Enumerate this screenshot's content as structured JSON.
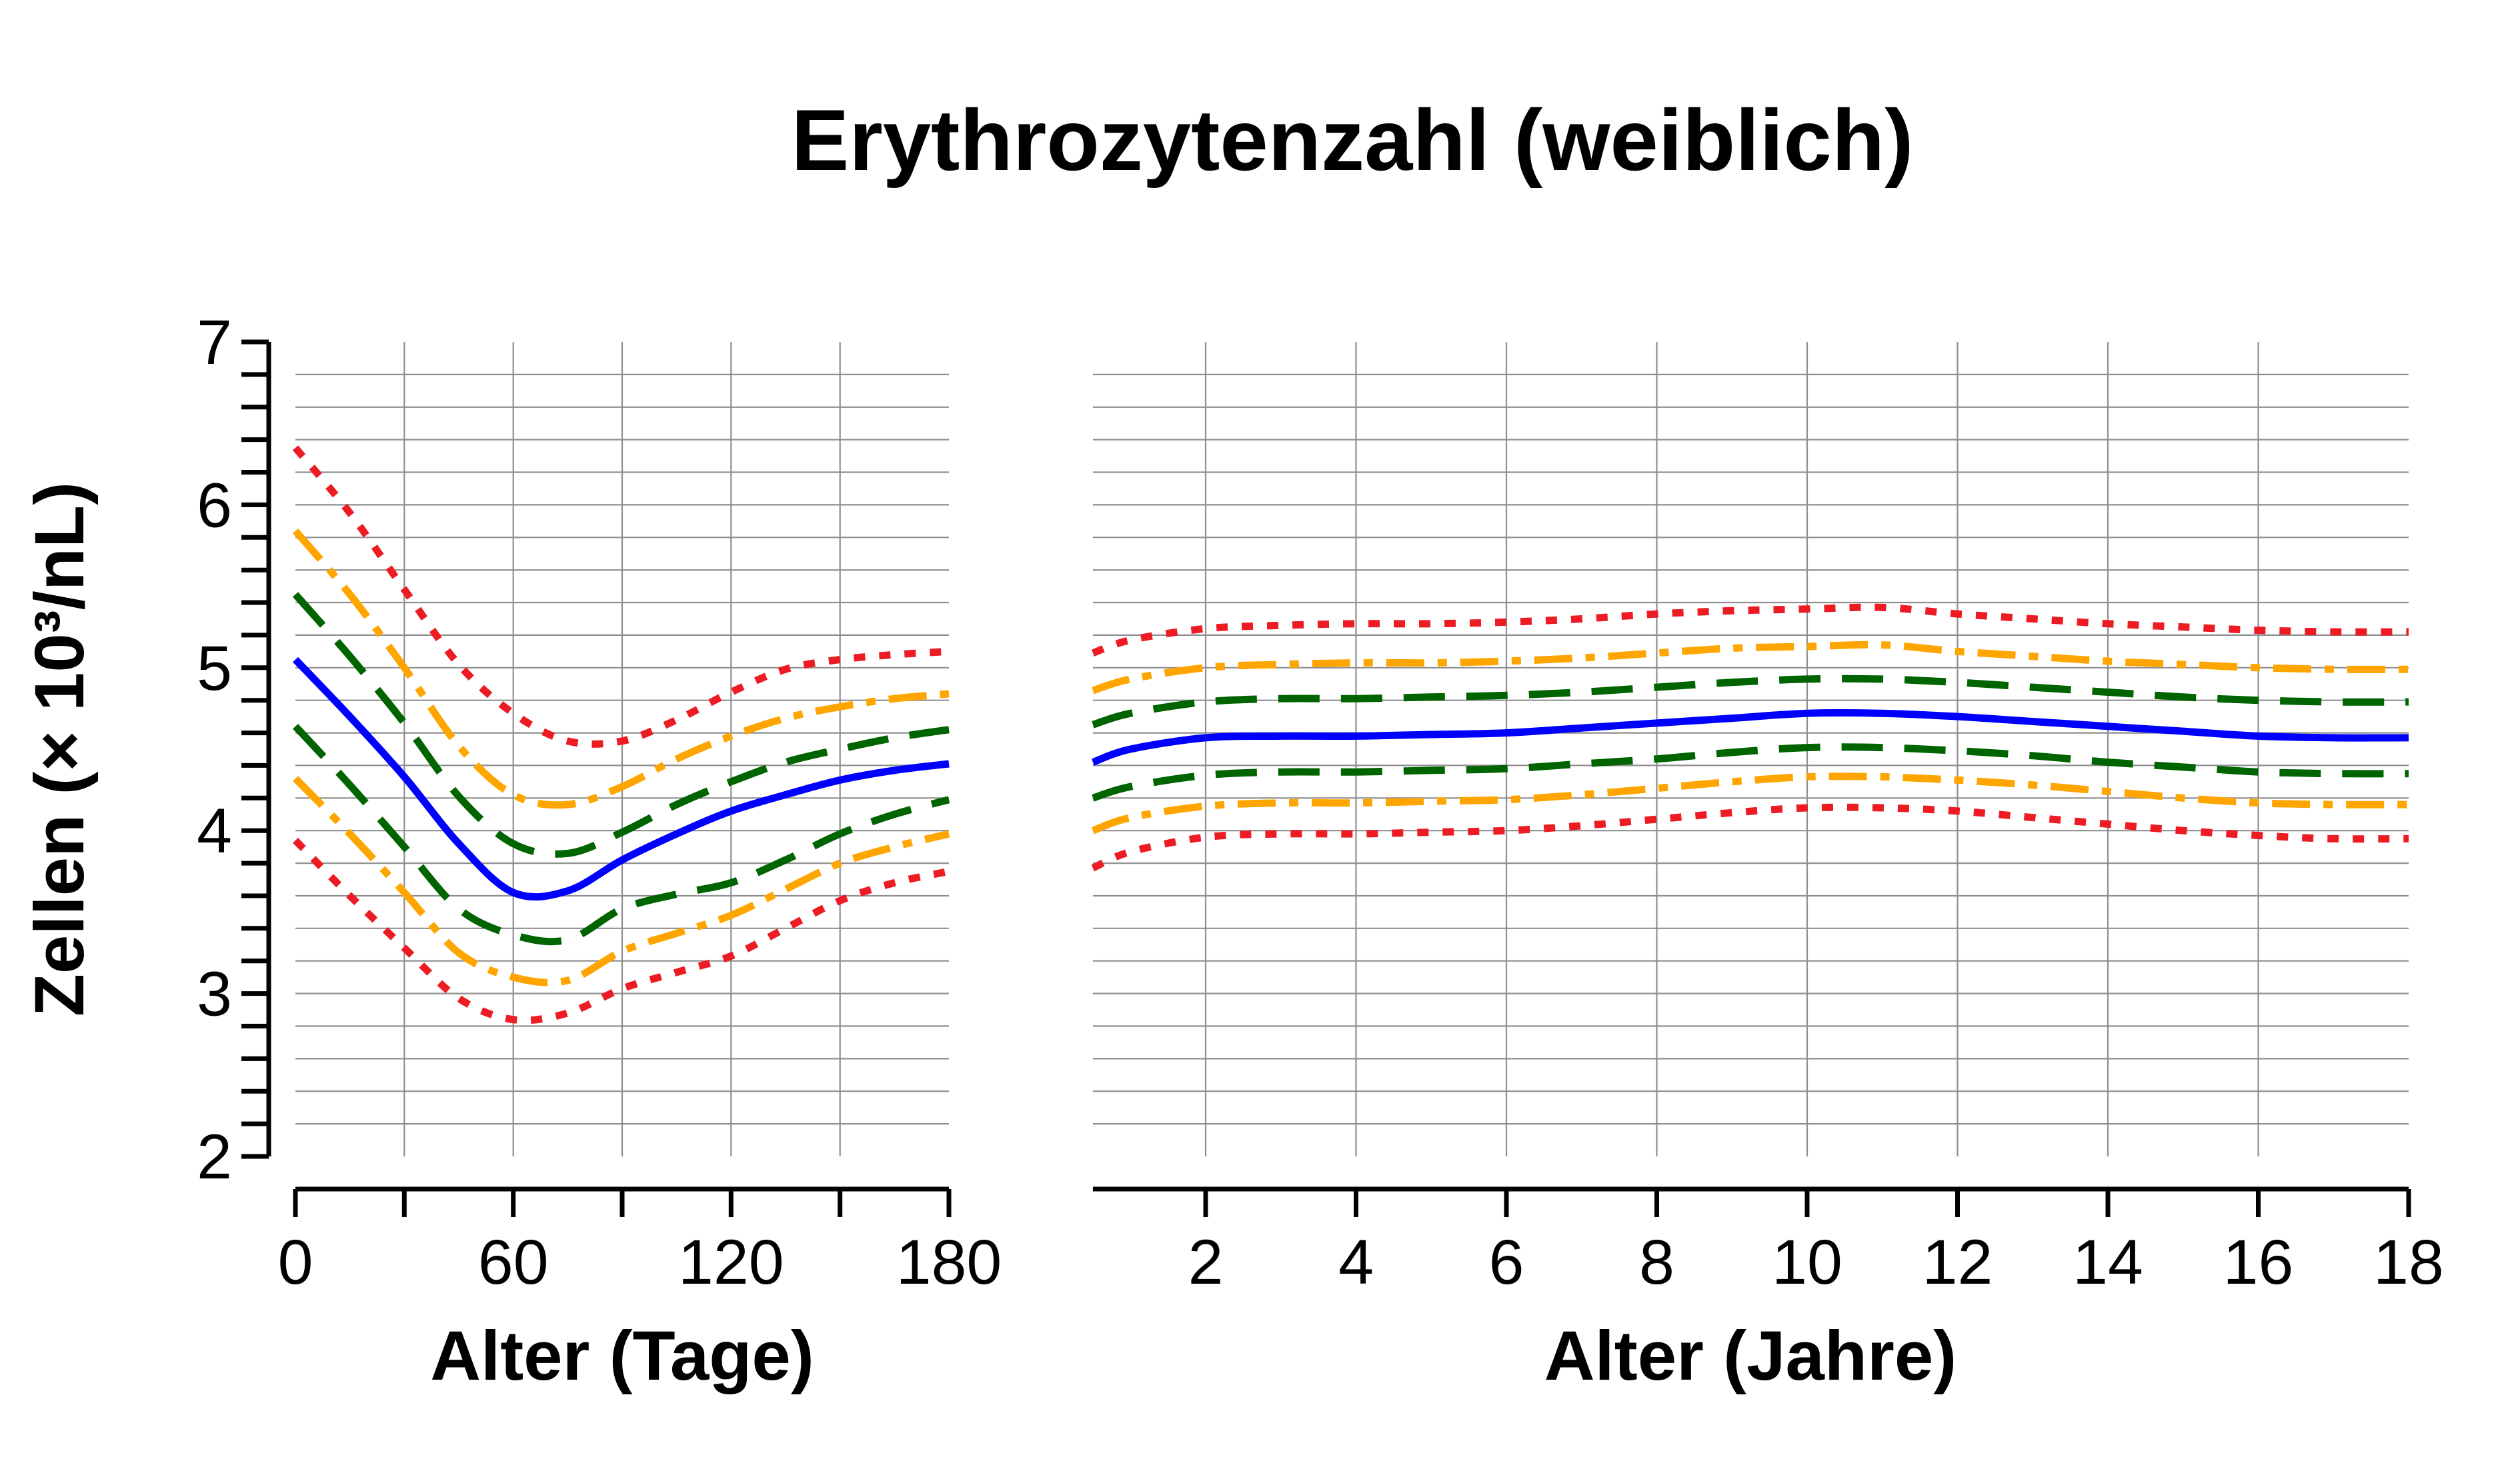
{
  "title": "Erythrozytenzahl (weiblich)",
  "y_axis": {
    "label": "Zellen (× 10³/nL)",
    "min": 2,
    "max": 7,
    "minor_tick_step": 0.2,
    "labeled_ticks": [
      {
        "value": 2,
        "label": "2"
      },
      {
        "value": 3,
        "label": "3"
      },
      {
        "value": 4,
        "label": "4"
      },
      {
        "value": 5,
        "label": "5"
      },
      {
        "value": 6,
        "label": "6"
      },
      {
        "value": 7,
        "label": "7"
      }
    ]
  },
  "style": {
    "grid_color": "#8f8f8f",
    "axis_color": "#000000",
    "background": "#ffffff",
    "red": "#ed1c24",
    "orange": "#ffa500",
    "green": "#006400",
    "blue": "#0000ff"
  },
  "chart_data": [
    {
      "type": "line",
      "panel": "left",
      "xlabel": "Alter (Tage)",
      "ylabel": "Zellen (× 10³/nL)",
      "xlim": [
        0,
        180
      ],
      "ylim": [
        2,
        7
      ],
      "grid": true,
      "legend_position": "none",
      "x_ticks": [
        0,
        30,
        60,
        90,
        120,
        150,
        180
      ],
      "x_tick_labels": [
        {
          "value": 0,
          "label": "0"
        },
        {
          "value": 60,
          "label": "60"
        },
        {
          "value": 120,
          "label": "120"
        },
        {
          "value": 180,
          "label": "180"
        }
      ],
      "x_gridlines": [
        30,
        60,
        90,
        120,
        150
      ],
      "x": [
        0,
        15,
        30,
        45,
        60,
        75,
        90,
        105,
        120,
        135,
        150,
        165,
        180
      ],
      "series": [
        {
          "name": "upper-red-band",
          "color": "#ed1c24",
          "style": "dotted",
          "values": [
            6.35,
            5.95,
            5.48,
            5.02,
            4.72,
            4.55,
            4.55,
            4.68,
            4.85,
            4.99,
            5.05,
            5.08,
            5.1
          ]
        },
        {
          "name": "upper-orange-band",
          "color": "#ffa500",
          "style": "dashdot",
          "values": [
            5.84,
            5.45,
            5.0,
            4.52,
            4.22,
            4.16,
            4.27,
            4.44,
            4.58,
            4.69,
            4.76,
            4.81,
            4.84
          ]
        },
        {
          "name": "upper-green-band",
          "color": "#006400",
          "style": "dashed",
          "values": [
            5.45,
            5.07,
            4.66,
            4.21,
            3.92,
            3.86,
            3.99,
            4.16,
            4.3,
            4.42,
            4.5,
            4.57,
            4.62
          ]
        },
        {
          "name": "median-blue",
          "color": "#0000ff",
          "style": "solid",
          "values": [
            5.05,
            4.7,
            4.33,
            3.92,
            3.62,
            3.63,
            3.82,
            3.98,
            4.12,
            4.22,
            4.31,
            4.37,
            4.41
          ]
        },
        {
          "name": "lower-green-band",
          "color": "#006400",
          "style": "dashed",
          "values": [
            4.64,
            4.28,
            3.9,
            3.52,
            3.36,
            3.33,
            3.52,
            3.61,
            3.68,
            3.82,
            3.98,
            4.1,
            4.19
          ]
        },
        {
          "name": "lower-orange-band",
          "color": "#ffa500",
          "style": "dashdot",
          "values": [
            4.32,
            3.98,
            3.62,
            3.25,
            3.1,
            3.08,
            3.26,
            3.37,
            3.48,
            3.64,
            3.8,
            3.9,
            3.98
          ]
        },
        {
          "name": "lower-red-band",
          "color": "#ed1c24",
          "style": "dotted",
          "values": [
            3.94,
            3.6,
            3.28,
            2.97,
            2.84,
            2.88,
            3.03,
            3.13,
            3.23,
            3.4,
            3.57,
            3.68,
            3.75
          ]
        }
      ]
    },
    {
      "type": "line",
      "panel": "right",
      "xlabel": "Alter (Jahre)",
      "ylabel": "Zellen (× 10³/nL)",
      "xlim": [
        0.5,
        18
      ],
      "ylim": [
        2,
        7
      ],
      "grid": true,
      "legend_position": "none",
      "x_ticks": [
        2,
        4,
        6,
        8,
        10,
        12,
        14,
        16,
        18
      ],
      "x_tick_labels": [
        {
          "value": 2,
          "label": "2"
        },
        {
          "value": 4,
          "label": "4"
        },
        {
          "value": 6,
          "label": "6"
        },
        {
          "value": 8,
          "label": "8"
        },
        {
          "value": 10,
          "label": "10"
        },
        {
          "value": 12,
          "label": "12"
        },
        {
          "value": 14,
          "label": "14"
        },
        {
          "value": 16,
          "label": "16"
        },
        {
          "value": 18,
          "label": "18"
        }
      ],
      "x_gridlines": [
        2,
        4,
        6,
        8,
        10,
        12,
        14,
        16
      ],
      "x": [
        0.5,
        1,
        2,
        3,
        4,
        5,
        6,
        7,
        8,
        9,
        10,
        11,
        12,
        13,
        14,
        15,
        16,
        17,
        18
      ],
      "series": [
        {
          "name": "upper-red-band",
          "color": "#ed1c24",
          "style": "dotted",
          "values": [
            5.09,
            5.17,
            5.24,
            5.26,
            5.27,
            5.27,
            5.28,
            5.3,
            5.33,
            5.35,
            5.36,
            5.37,
            5.33,
            5.3,
            5.27,
            5.25,
            5.23,
            5.22,
            5.22
          ]
        },
        {
          "name": "upper-orange-band",
          "color": "#ffa500",
          "style": "dashdot",
          "values": [
            4.86,
            4.93,
            5.0,
            5.02,
            5.03,
            5.03,
            5.04,
            5.06,
            5.09,
            5.12,
            5.13,
            5.14,
            5.1,
            5.07,
            5.04,
            5.02,
            5.0,
            4.99,
            4.99
          ]
        },
        {
          "name": "upper-green-band",
          "color": "#006400",
          "style": "dashed",
          "values": [
            4.65,
            4.72,
            4.79,
            4.81,
            4.81,
            4.82,
            4.83,
            4.85,
            4.88,
            4.91,
            4.93,
            4.93,
            4.91,
            4.88,
            4.85,
            4.82,
            4.8,
            4.79,
            4.79
          ]
        },
        {
          "name": "median-blue",
          "color": "#0000ff",
          "style": "solid",
          "values": [
            4.42,
            4.5,
            4.57,
            4.58,
            4.58,
            4.59,
            4.6,
            4.63,
            4.66,
            4.69,
            4.72,
            4.72,
            4.7,
            4.67,
            4.64,
            4.61,
            4.58,
            4.57,
            4.57
          ]
        },
        {
          "name": "lower-green-band",
          "color": "#006400",
          "style": "dashed",
          "values": [
            4.2,
            4.27,
            4.34,
            4.36,
            4.36,
            4.37,
            4.38,
            4.41,
            4.44,
            4.48,
            4.51,
            4.51,
            4.49,
            4.46,
            4.42,
            4.39,
            4.36,
            4.35,
            4.35
          ]
        },
        {
          "name": "lower-orange-band",
          "color": "#ffa500",
          "style": "dashdot",
          "values": [
            4.0,
            4.08,
            4.15,
            4.17,
            4.17,
            4.18,
            4.19,
            4.22,
            4.26,
            4.3,
            4.33,
            4.33,
            4.31,
            4.28,
            4.24,
            4.2,
            4.17,
            4.16,
            4.16
          ]
        },
        {
          "name": "lower-red-band",
          "color": "#ed1c24",
          "style": "dotted",
          "values": [
            3.77,
            3.87,
            3.96,
            3.98,
            3.98,
            3.99,
            4.0,
            4.03,
            4.07,
            4.11,
            4.14,
            4.14,
            4.12,
            4.08,
            4.04,
            4.0,
            3.97,
            3.95,
            3.95
          ]
        }
      ]
    }
  ]
}
